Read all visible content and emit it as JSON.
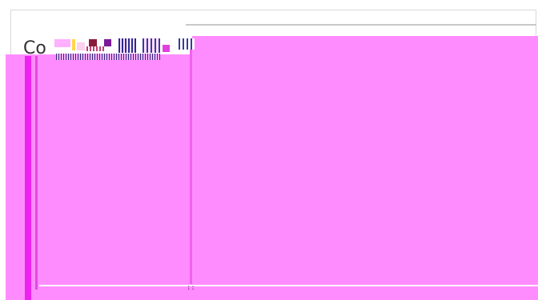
{
  "window": {
    "title": "Co"
  },
  "overlay": {
    "color": "#ff8cff",
    "accent": "#ee22ee"
  },
  "artifacts": {
    "bottom_glyph": "::",
    "glyph_colors": [
      "#ffd54a",
      "#8a1a3a",
      "#7a1a9a",
      "#e040e0",
      "#2c2c8c"
    ]
  }
}
